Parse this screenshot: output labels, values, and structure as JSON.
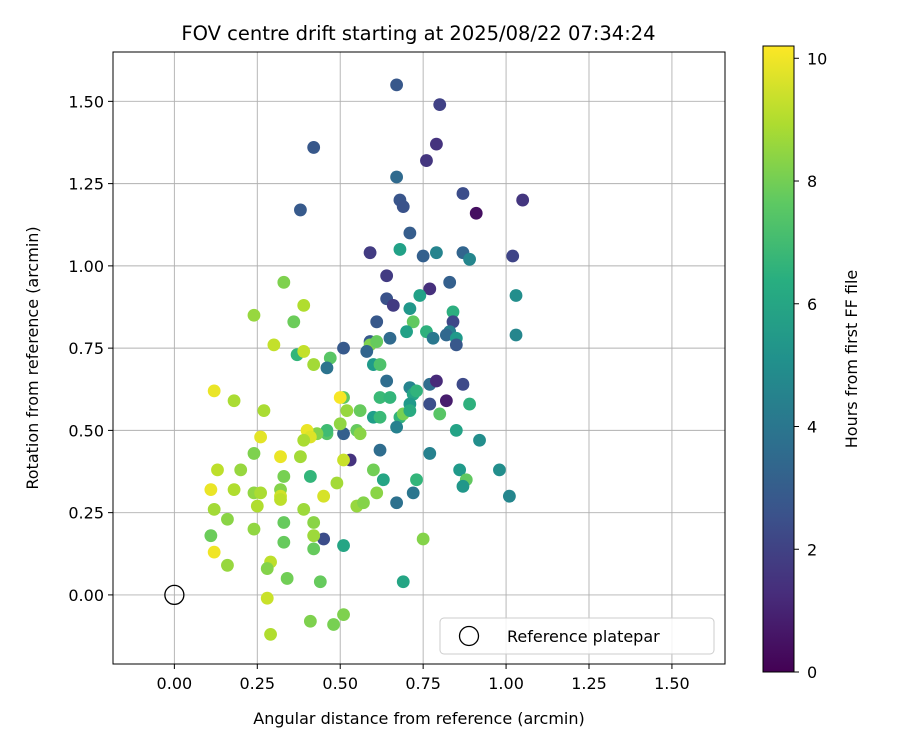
{
  "chart_data": {
    "type": "scatter",
    "title": "FOV centre drift starting at 2025/08/22 07:34:24",
    "xlabel": "Angular distance from reference (arcmin)",
    "ylabel": "Rotation from reference (arcmin)",
    "xlim": [
      -0.185,
      1.66
    ],
    "ylim": [
      -0.21,
      1.65
    ],
    "xticks": [
      0.0,
      0.25,
      0.5,
      0.75,
      1.0,
      1.25,
      1.5
    ],
    "xtick_labels": [
      "0.00",
      "0.25",
      "0.50",
      "0.75",
      "1.00",
      "1.25",
      "1.50"
    ],
    "yticks": [
      0.0,
      0.25,
      0.5,
      0.75,
      1.0,
      1.25,
      1.5
    ],
    "ytick_labels": [
      "0.00",
      "0.25",
      "0.50",
      "0.75",
      "1.00",
      "1.25",
      "1.50"
    ],
    "grid": true,
    "colormap": "viridis",
    "colorbar": {
      "label": "Hours from first FF file",
      "range": [
        0,
        10.2
      ],
      "ticks": [
        0,
        2,
        4,
        6,
        8,
        10
      ],
      "tick_labels": [
        "0",
        "2",
        "4",
        "6",
        "8",
        "10"
      ]
    },
    "reference": {
      "name": "Reference platepar",
      "x": 0.0,
      "y": 0.0
    },
    "legend": {
      "position": "lower-right",
      "entries": [
        "Reference platepar"
      ]
    },
    "points": [
      [
        0.67,
        1.55,
        2.8
      ],
      [
        0.8,
        1.49,
        2.0
      ],
      [
        0.42,
        1.36,
        2.8
      ],
      [
        0.79,
        1.37,
        1.5
      ],
      [
        0.76,
        1.32,
        1.6
      ],
      [
        0.67,
        1.27,
        3.5
      ],
      [
        0.87,
        1.22,
        2.4
      ],
      [
        0.68,
        1.2,
        2.7
      ],
      [
        1.05,
        1.2,
        1.6
      ],
      [
        0.69,
        1.18,
        2.6
      ],
      [
        0.38,
        1.17,
        2.9
      ],
      [
        0.91,
        1.16,
        0.4
      ],
      [
        0.71,
        1.1,
        3.0
      ],
      [
        0.59,
        1.04,
        1.8
      ],
      [
        0.68,
        1.05,
        5.8
      ],
      [
        0.79,
        1.04,
        4.6
      ],
      [
        0.87,
        1.04,
        3.3
      ],
      [
        0.75,
        1.03,
        3.1
      ],
      [
        1.02,
        1.03,
        2.1
      ],
      [
        0.89,
        1.02,
        4.7
      ],
      [
        0.64,
        0.97,
        1.8
      ],
      [
        0.83,
        0.95,
        3.1
      ],
      [
        0.77,
        0.93,
        1.4
      ],
      [
        0.64,
        0.9,
        2.6
      ],
      [
        0.66,
        0.88,
        1.8
      ],
      [
        0.74,
        0.91,
        5.8
      ],
      [
        1.03,
        0.91,
        5.0
      ],
      [
        0.71,
        0.87,
        5.4
      ],
      [
        0.84,
        0.86,
        6.4
      ],
      [
        0.61,
        0.83,
        2.8
      ],
      [
        0.84,
        0.83,
        2.2
      ],
      [
        0.83,
        0.8,
        4.4
      ],
      [
        0.72,
        0.83,
        7.7
      ],
      [
        0.76,
        0.8,
        6.5
      ],
      [
        0.82,
        0.79,
        3.4
      ],
      [
        0.78,
        0.78,
        4.1
      ],
      [
        0.85,
        0.78,
        5.5
      ],
      [
        0.85,
        0.76,
        2.8
      ],
      [
        0.65,
        0.78,
        3.5
      ],
      [
        0.59,
        0.77,
        2.9
      ],
      [
        0.59,
        0.76,
        8.2
      ],
      [
        0.61,
        0.77,
        7.8
      ],
      [
        0.7,
        0.8,
        5.8
      ],
      [
        0.51,
        0.75,
        2.9
      ],
      [
        0.58,
        0.74,
        3.3
      ],
      [
        1.03,
        0.79,
        4.7
      ],
      [
        0.47,
        0.72,
        7.5
      ],
      [
        0.37,
        0.73,
        6.7
      ],
      [
        0.46,
        0.69,
        3.9
      ],
      [
        0.6,
        0.7,
        5.5
      ],
      [
        0.62,
        0.7,
        7.3
      ],
      [
        0.42,
        0.7,
        8.8
      ],
      [
        0.39,
        0.74,
        9.3
      ],
      [
        0.36,
        0.83,
        7.9
      ],
      [
        0.39,
        0.88,
        9.0
      ],
      [
        0.33,
        0.95,
        8.2
      ],
      [
        0.24,
        0.85,
        8.6
      ],
      [
        0.3,
        0.76,
        9.3
      ],
      [
        0.64,
        0.65,
        3.6
      ],
      [
        0.71,
        0.63,
        4.6
      ],
      [
        0.77,
        0.64,
        3.6
      ],
      [
        0.79,
        0.65,
        1.2
      ],
      [
        0.87,
        0.64,
        2.3
      ],
      [
        0.72,
        0.61,
        6.0
      ],
      [
        0.73,
        0.62,
        6.6
      ],
      [
        0.62,
        0.6,
        6.9
      ],
      [
        0.65,
        0.6,
        6.7
      ],
      [
        0.71,
        0.58,
        5.5
      ],
      [
        0.77,
        0.58,
        2.5
      ],
      [
        0.82,
        0.59,
        0.8
      ],
      [
        0.89,
        0.58,
        6.5
      ],
      [
        0.51,
        0.6,
        7.6
      ],
      [
        0.5,
        0.6,
        10.1
      ],
      [
        0.52,
        0.56,
        8.6
      ],
      [
        0.56,
        0.56,
        7.8
      ],
      [
        0.6,
        0.54,
        5.7
      ],
      [
        0.62,
        0.54,
        6.9
      ],
      [
        0.68,
        0.54,
        6.6
      ],
      [
        0.69,
        0.55,
        8.1
      ],
      [
        0.71,
        0.56,
        6.2
      ],
      [
        0.67,
        0.51,
        4.5
      ],
      [
        0.8,
        0.55,
        7.5
      ],
      [
        0.85,
        0.5,
        5.9
      ],
      [
        0.92,
        0.47,
        5.0
      ],
      [
        0.51,
        0.49,
        3.1
      ],
      [
        0.5,
        0.52,
        8.5
      ],
      [
        0.55,
        0.5,
        7.8
      ],
      [
        0.56,
        0.49,
        8.4
      ],
      [
        0.46,
        0.49,
        7.4
      ],
      [
        0.46,
        0.5,
        7.0
      ],
      [
        0.43,
        0.49,
        8.3
      ],
      [
        0.4,
        0.5,
        9.9
      ],
      [
        0.41,
        0.48,
        9.7
      ],
      [
        0.39,
        0.47,
        8.9
      ],
      [
        0.26,
        0.48,
        9.8
      ],
      [
        0.27,
        0.56,
        8.9
      ],
      [
        0.18,
        0.59,
        8.9
      ],
      [
        0.12,
        0.62,
        9.9
      ],
      [
        0.62,
        0.44,
        3.6
      ],
      [
        0.77,
        0.43,
        4.5
      ],
      [
        0.53,
        0.41,
        1.5
      ],
      [
        0.51,
        0.41,
        9.4
      ],
      [
        0.6,
        0.38,
        8.0
      ],
      [
        0.86,
        0.38,
        5.5
      ],
      [
        0.98,
        0.38,
        5.0
      ],
      [
        0.63,
        0.35,
        6.0
      ],
      [
        0.73,
        0.35,
        6.7
      ],
      [
        0.88,
        0.35,
        7.7
      ],
      [
        0.87,
        0.33,
        5.4
      ],
      [
        0.41,
        0.36,
        6.7
      ],
      [
        0.33,
        0.36,
        8.1
      ],
      [
        0.24,
        0.43,
        8.2
      ],
      [
        0.32,
        0.42,
        9.9
      ],
      [
        0.38,
        0.42,
        8.8
      ],
      [
        0.2,
        0.38,
        8.6
      ],
      [
        0.13,
        0.38,
        9.2
      ],
      [
        0.11,
        0.32,
        9.9
      ],
      [
        0.18,
        0.32,
        9.0
      ],
      [
        0.24,
        0.31,
        8.5
      ],
      [
        0.26,
        0.31,
        8.9
      ],
      [
        0.32,
        0.32,
        8.3
      ],
      [
        0.32,
        0.3,
        9.5
      ],
      [
        0.32,
        0.29,
        9.2
      ],
      [
        0.45,
        0.3,
        9.6
      ],
      [
        0.49,
        0.34,
        8.8
      ],
      [
        0.61,
        0.31,
        8.4
      ],
      [
        0.72,
        0.31,
        4.0
      ],
      [
        1.01,
        0.3,
        4.7
      ],
      [
        0.67,
        0.28,
        3.8
      ],
      [
        0.55,
        0.27,
        8.6
      ],
      [
        0.57,
        0.28,
        8.3
      ],
      [
        0.12,
        0.26,
        8.8
      ],
      [
        0.25,
        0.27,
        9.0
      ],
      [
        0.39,
        0.26,
        8.7
      ],
      [
        0.16,
        0.23,
        8.4
      ],
      [
        0.24,
        0.2,
        8.5
      ],
      [
        0.33,
        0.22,
        7.8
      ],
      [
        0.42,
        0.22,
        8.4
      ],
      [
        0.33,
        0.16,
        7.8
      ],
      [
        0.45,
        0.17,
        2.4
      ],
      [
        0.42,
        0.18,
        8.7
      ],
      [
        0.42,
        0.14,
        7.8
      ],
      [
        0.51,
        0.15,
        6.0
      ],
      [
        0.11,
        0.18,
        7.9
      ],
      [
        0.12,
        0.13,
        10.0
      ],
      [
        0.16,
        0.09,
        8.6
      ],
      [
        0.29,
        0.1,
        9.2
      ],
      [
        0.28,
        0.08,
        8.3
      ],
      [
        0.34,
        0.05,
        8.0
      ],
      [
        0.44,
        0.04,
        7.8
      ],
      [
        0.69,
        0.04,
        6.0
      ],
      [
        0.75,
        0.17,
        8.3
      ],
      [
        0.28,
        -0.01,
        9.4
      ],
      [
        0.41,
        -0.08,
        8.2
      ],
      [
        0.51,
        -0.06,
        8.2
      ],
      [
        0.48,
        -0.09,
        8.1
      ],
      [
        0.29,
        -0.12,
        9.0
      ]
    ]
  }
}
